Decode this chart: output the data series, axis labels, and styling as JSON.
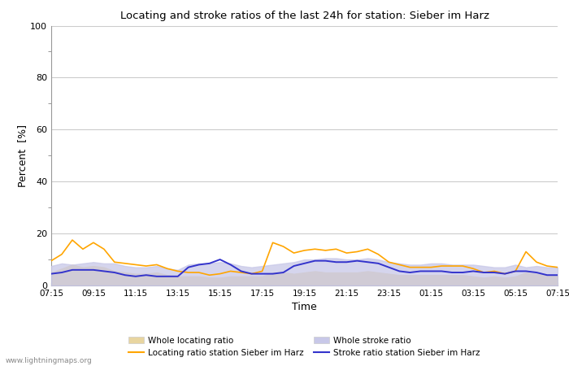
{
  "title": "Locating and stroke ratios of the last 24h for station: Sieber im Harz",
  "xlabel": "Time",
  "ylabel": "Percent  [%]",
  "xlim": [
    0,
    48
  ],
  "ylim": [
    0,
    100
  ],
  "yticks": [
    0,
    20,
    40,
    60,
    80,
    100
  ],
  "xtick_labels": [
    "07:15",
    "09:15",
    "11:15",
    "13:15",
    "15:15",
    "17:15",
    "19:15",
    "21:15",
    "23:15",
    "01:15",
    "03:15",
    "05:15",
    "07:15"
  ],
  "xtick_positions": [
    0,
    4,
    8,
    12,
    16,
    20,
    24,
    28,
    32,
    36,
    40,
    44,
    48
  ],
  "watermark": "www.lightningmaps.org",
  "locating_line_color": "#FFA500",
  "stroke_line_color": "#3333CC",
  "locating_fill_color": "#E8D5A0",
  "stroke_fill_color": "#C8C8E8",
  "background_color": "#FFFFFF",
  "grid_color": "#CCCCCC",
  "locating_line": [
    9.5,
    12.0,
    17.5,
    14.0,
    16.5,
    14.0,
    9.0,
    8.5,
    8.0,
    7.5,
    8.0,
    6.5,
    5.5,
    5.0,
    5.0,
    4.0,
    4.5,
    5.5,
    5.0,
    4.5,
    5.5,
    16.5,
    15.0,
    12.5,
    13.5,
    14.0,
    13.5,
    14.0,
    12.5,
    13.0,
    14.0,
    12.0,
    9.0,
    8.0,
    7.0,
    7.0,
    7.0,
    7.5,
    7.5,
    7.5,
    6.5,
    5.0,
    5.5,
    4.5,
    5.5,
    13.0,
    9.0,
    7.5,
    7.0
  ],
  "locating_fill_upper": [
    5.0,
    6.5,
    8.0,
    7.0,
    7.5,
    7.0,
    5.5,
    5.0,
    4.5,
    4.5,
    5.0,
    4.0,
    3.5,
    3.5,
    3.5,
    3.0,
    3.0,
    3.5,
    3.5,
    3.5,
    3.5,
    5.0,
    5.0,
    4.5,
    5.0,
    5.5,
    5.0,
    5.0,
    5.0,
    5.0,
    5.5,
    5.0,
    4.5,
    4.0,
    4.0,
    4.0,
    4.0,
    4.0,
    4.0,
    4.0,
    3.5,
    3.0,
    3.5,
    3.0,
    3.5,
    5.0,
    4.5,
    4.0,
    4.0
  ],
  "stroke_line": [
    4.5,
    5.0,
    6.0,
    6.0,
    6.0,
    5.5,
    5.0,
    4.0,
    3.5,
    4.0,
    3.5,
    3.5,
    3.5,
    7.0,
    8.0,
    8.5,
    10.0,
    8.0,
    5.5,
    4.5,
    4.5,
    4.5,
    5.0,
    7.5,
    8.5,
    9.5,
    9.5,
    9.0,
    9.0,
    9.5,
    9.0,
    8.5,
    7.0,
    5.5,
    5.0,
    5.5,
    5.5,
    5.5,
    5.0,
    5.0,
    5.5,
    5.0,
    5.0,
    4.5,
    5.5,
    5.5,
    5.0,
    4.0,
    4.0
  ],
  "stroke_fill_upper": [
    7.5,
    8.5,
    8.0,
    8.5,
    9.0,
    8.5,
    8.5,
    7.5,
    7.0,
    7.0,
    7.5,
    6.5,
    6.0,
    8.0,
    8.5,
    8.5,
    9.0,
    8.5,
    7.5,
    7.0,
    7.5,
    8.0,
    8.5,
    9.0,
    10.0,
    10.0,
    10.5,
    10.5,
    10.0,
    10.0,
    10.5,
    10.0,
    9.0,
    8.5,
    8.0,
    8.0,
    8.5,
    8.5,
    8.0,
    8.0,
    8.0,
    7.5,
    7.0,
    7.0,
    8.0,
    7.0,
    7.5,
    7.0,
    7.0
  ]
}
